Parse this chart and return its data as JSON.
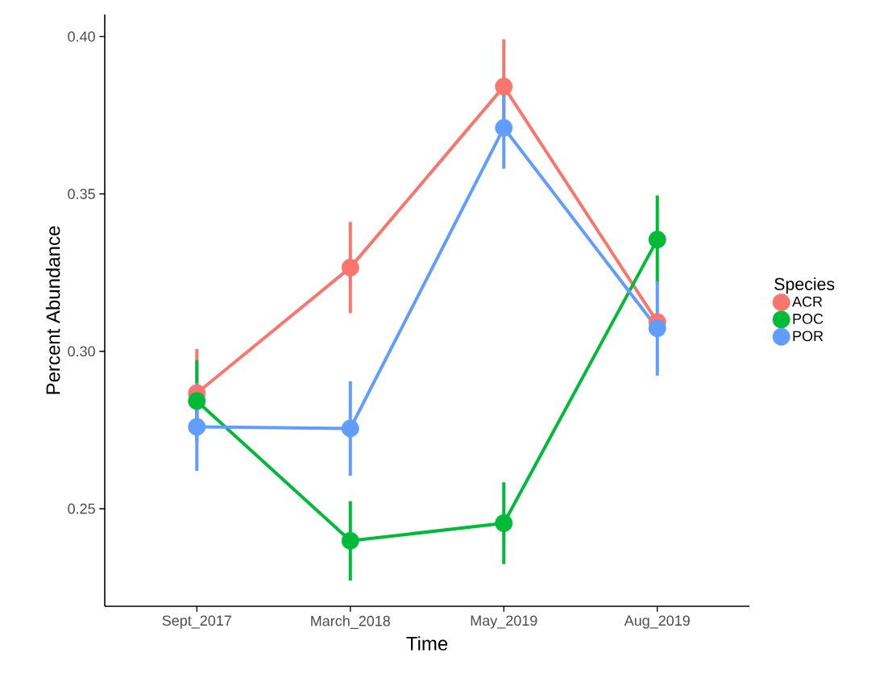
{
  "chart_data": {
    "type": "line",
    "xlabel": "Time",
    "ylabel": "Percent Abundance",
    "legend_title": "Species",
    "categories": [
      "Sept_2017",
      "March_2018",
      "May_2019",
      "Aug_2019"
    ],
    "series": [
      {
        "name": "ACR",
        "color": "#f8766d",
        "values": [
          0.2867,
          0.3266,
          0.3841,
          0.3093
        ],
        "errors": [
          0.014,
          0.0145,
          0.015,
          null
        ]
      },
      {
        "name": "POC",
        "color": "#00ba38",
        "values": [
          0.2842,
          0.2398,
          0.2454,
          0.3355
        ],
        "errors": [
          0.013,
          0.0126,
          0.013,
          0.014
        ]
      },
      {
        "name": "POR",
        "color": "#619cff",
        "values": [
          0.276,
          0.2755,
          0.371,
          0.3073
        ],
        "errors": [
          0.014,
          0.015,
          0.013,
          0.015
        ]
      }
    ],
    "ylim": [
      0.219,
      0.407
    ],
    "yticks": [
      {
        "value": 0.25,
        "label": "0.25"
      },
      {
        "value": 0.3,
        "label": "0.30"
      },
      {
        "value": 0.35,
        "label": "0.35"
      },
      {
        "value": 0.4,
        "label": "0.40"
      }
    ],
    "grid": false,
    "legend": "right",
    "marker": "circle",
    "line_style": "solid"
  }
}
